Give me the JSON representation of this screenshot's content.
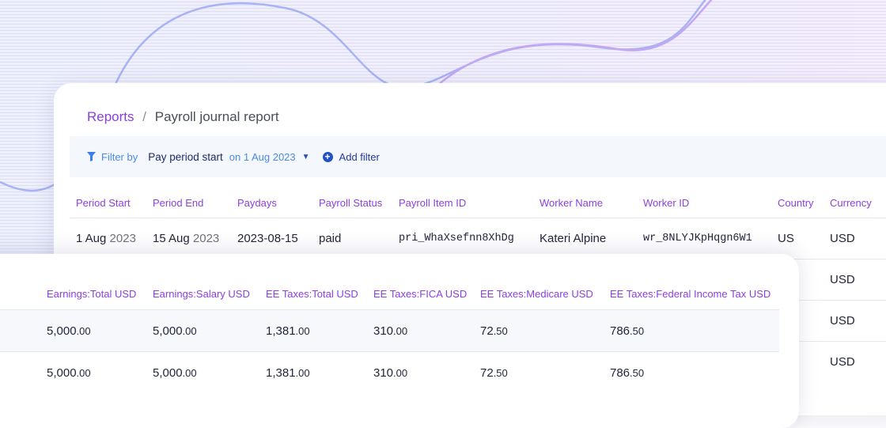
{
  "breadcrumb": {
    "root": "Reports",
    "separator": "/",
    "current": "Payroll journal report"
  },
  "filter": {
    "label": "Filter by",
    "field": "Pay period start",
    "value": "on 1 Aug 2023",
    "add_label": "Add filter",
    "icons": {
      "filter": "funnel-icon",
      "dropdown": "caret-down-icon",
      "add": "plus-circle-icon"
    }
  },
  "back_table": {
    "columns": [
      "Period Start",
      "Period End",
      "Paydays",
      "Payroll Status",
      "Payroll Item ID",
      "Worker Name",
      "Worker ID",
      "Country",
      "Currency"
    ],
    "row": {
      "period_start_day": "1 Aug",
      "period_start_year": "2023",
      "period_end_day": "15 Aug",
      "period_end_year": "2023",
      "payday": "2023-08-15",
      "status": "paid",
      "item_id": "pri_WhaXsefnn8XhDg",
      "worker_name": "Kateri Alpine",
      "worker_id": "wr_8NLYJKpHqgn6W1",
      "country": "US",
      "currency": "USD"
    },
    "extra_currency": [
      "USD",
      "USD",
      "USD"
    ]
  },
  "front_table": {
    "columns": [
      "Earnings:Total USD",
      "Earnings:Salary USD",
      "EE Taxes:Total USD",
      "EE Taxes:FICA USD",
      "EE Taxes:Medicare USD",
      "EE Taxes:Federal Income Tax USD"
    ],
    "rows": [
      [
        "5,000",
        "5,000",
        "1,381",
        "310",
        "72",
        "786"
      ],
      [
        "5,000",
        "5,000",
        "1,381",
        "310",
        "72",
        "786"
      ]
    ],
    "decimals": [
      [
        ".00",
        ".00",
        ".00",
        ".00",
        ".50",
        ".50"
      ],
      [
        ".00",
        ".00",
        ".00",
        ".00",
        ".50",
        ".50"
      ]
    ]
  },
  "colors": {
    "accent_purple": "#8b3fe0",
    "filter_blue": "#4b8be6",
    "navy": "#1f2a6a"
  }
}
